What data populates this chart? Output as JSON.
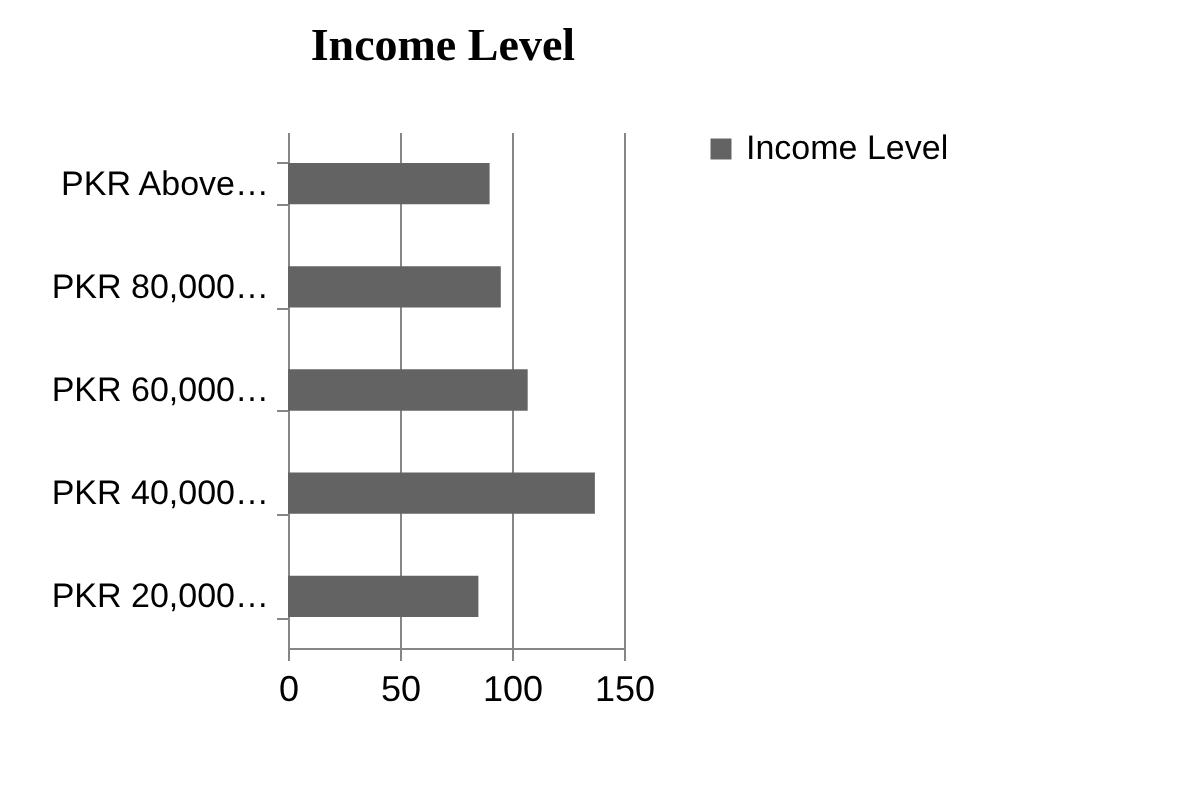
{
  "chart_data": {
    "type": "bar",
    "orientation": "horizontal",
    "title": "Income Level",
    "categories": [
      "PKR Above…",
      "PKR 80,000…",
      "PKR 60,000…",
      "PKR 40,000…",
      "PKR 20,000…"
    ],
    "series": [
      {
        "name": "Income Level",
        "color": "#636363",
        "values": [
          90,
          95,
          107,
          137,
          85
        ]
      }
    ],
    "xlim": [
      0,
      150
    ],
    "xticks": [
      0,
      50,
      100,
      150
    ],
    "grid": "x",
    "legend": "right"
  }
}
